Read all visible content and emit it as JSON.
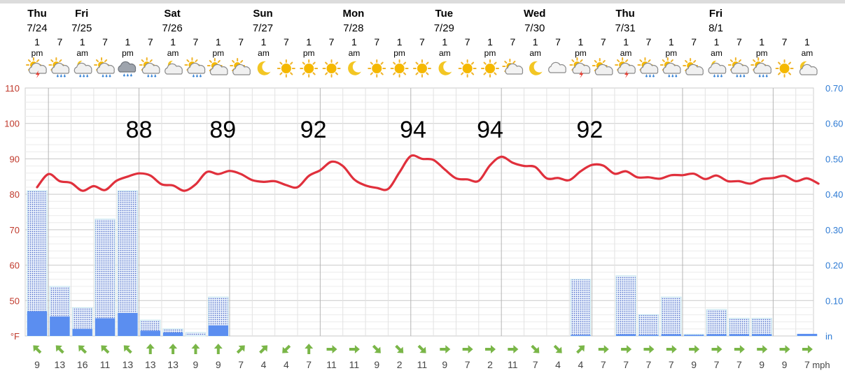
{
  "chart_data": {
    "type": "line",
    "x_times": [
      "Thu 7/24 1pm",
      "7pm",
      "Fri 7/25 1am",
      "7am",
      "1pm",
      "7pm",
      "Sat 7/26 1am",
      "7am",
      "1pm",
      "7pm",
      "Sun 7/27 1am",
      "7am",
      "1pm",
      "7pm",
      "Mon 7/28 1am",
      "7am",
      "1pm",
      "7pm",
      "Tue 7/29 1am",
      "7am",
      "1pm",
      "7pm",
      "Wed 7/30 1am",
      "7am",
      "1pm",
      "7pm",
      "Thu 7/31 1am",
      "7am",
      "1pm",
      "7pm",
      "Fri 8/1 1am",
      "7am",
      "1pm",
      "7pm",
      "1am"
    ],
    "days": [
      {
        "name": "Thu",
        "date": "7/24"
      },
      {
        "name": "Fri",
        "date": "7/25"
      },
      {
        "name": "Sat",
        "date": "7/26"
      },
      {
        "name": "Sun",
        "date": "7/27"
      },
      {
        "name": "Mon",
        "date": "7/28"
      },
      {
        "name": "Tue",
        "date": "7/29"
      },
      {
        "name": "Wed",
        "date": "7/30"
      },
      {
        "name": "Thu",
        "date": "7/31"
      },
      {
        "name": "Fri",
        "date": "8/1"
      }
    ],
    "hour_labels": [
      {
        "h": "1",
        "ap": "pm"
      },
      {
        "h": "7",
        "ap": ""
      },
      {
        "h": "1",
        "ap": "am"
      },
      {
        "h": "7",
        "ap": ""
      },
      {
        "h": "1",
        "ap": "pm"
      },
      {
        "h": "7",
        "ap": ""
      },
      {
        "h": "1",
        "ap": "am"
      },
      {
        "h": "7",
        "ap": ""
      },
      {
        "h": "1",
        "ap": "pm"
      },
      {
        "h": "7",
        "ap": ""
      },
      {
        "h": "1",
        "ap": "am"
      },
      {
        "h": "7",
        "ap": ""
      },
      {
        "h": "1",
        "ap": "pm"
      },
      {
        "h": "7",
        "ap": ""
      },
      {
        "h": "1",
        "ap": "am"
      },
      {
        "h": "7",
        "ap": ""
      },
      {
        "h": "1",
        "ap": "pm"
      },
      {
        "h": "7",
        "ap": ""
      },
      {
        "h": "1",
        "ap": "am"
      },
      {
        "h": "7",
        "ap": ""
      },
      {
        "h": "1",
        "ap": "pm"
      },
      {
        "h": "7",
        "ap": ""
      },
      {
        "h": "1",
        "ap": "am"
      },
      {
        "h": "7",
        "ap": ""
      },
      {
        "h": "1",
        "ap": "pm"
      },
      {
        "h": "7",
        "ap": ""
      },
      {
        "h": "1",
        "ap": "am"
      },
      {
        "h": "7",
        "ap": ""
      },
      {
        "h": "1",
        "ap": "pm"
      },
      {
        "h": "7",
        "ap": ""
      },
      {
        "h": "1",
        "ap": "am"
      },
      {
        "h": "7",
        "ap": ""
      },
      {
        "h": "1",
        "ap": "pm"
      },
      {
        "h": "7",
        "ap": ""
      },
      {
        "h": "1",
        "ap": "am"
      }
    ],
    "weather_icons": [
      "thunderstorm-icon",
      "partly-cloudy-rain-icon",
      "night-rain-icon",
      "partly-cloudy-rain-icon",
      "heavy-rain-icon",
      "partly-cloudy-rain-icon",
      "night-cloudy-icon",
      "partly-cloudy-rain-icon",
      "partly-cloudy-icon",
      "partly-cloudy-icon",
      "moon-icon",
      "sun-icon",
      "sun-icon",
      "sun-icon",
      "moon-icon",
      "sun-icon",
      "sun-icon",
      "sun-icon",
      "moon-icon",
      "sun-icon",
      "sun-icon",
      "sun-cloud-icon",
      "moon-icon",
      "cloud-icon",
      "thunderstorm-icon",
      "partly-cloudy-icon",
      "thunderstorm-icon",
      "partly-cloudy-rain-icon",
      "partly-cloudy-rain-icon",
      "partly-cloudy-icon",
      "night-rain-icon",
      "partly-cloudy-rain-icon",
      "partly-cloudy-rain-icon",
      "sun-icon",
      "moon-cloud-icon"
    ],
    "temperature_f": [
      [
        0,
        82
      ],
      [
        0.5,
        85.7
      ],
      [
        1,
        83.7
      ],
      [
        1.5,
        83.2
      ],
      [
        2,
        81
      ],
      [
        2.5,
        82.3
      ],
      [
        3,
        81.2
      ],
      [
        3.5,
        83.8
      ],
      [
        4,
        85
      ],
      [
        4.5,
        85.9
      ],
      [
        5,
        85.3
      ],
      [
        5.5,
        82.8
      ],
      [
        6,
        82.5
      ],
      [
        6.5,
        81
      ],
      [
        7,
        82.8
      ],
      [
        7.5,
        86.3
      ],
      [
        8,
        85.7
      ],
      [
        8.5,
        86.6
      ],
      [
        9,
        85.7
      ],
      [
        9.5,
        84
      ],
      [
        10,
        83.5
      ],
      [
        10.5,
        83.7
      ],
      [
        11,
        82.6
      ],
      [
        11.5,
        82
      ],
      [
        12,
        85.2
      ],
      [
        12.5,
        86.8
      ],
      [
        13,
        89.2
      ],
      [
        13.5,
        88
      ],
      [
        14,
        84.2
      ],
      [
        14.5,
        82.5
      ],
      [
        15,
        81.8
      ],
      [
        15.5,
        81.5
      ],
      [
        16,
        86.2
      ],
      [
        16.5,
        90.8
      ],
      [
        17,
        90
      ],
      [
        17.5,
        89.7
      ],
      [
        18,
        87
      ],
      [
        18.5,
        84.5
      ],
      [
        19,
        84.2
      ],
      [
        19.5,
        83.8
      ],
      [
        20,
        88.2
      ],
      [
        20.5,
        90.6
      ],
      [
        21,
        88.9
      ],
      [
        21.5,
        88
      ],
      [
        22,
        87.7
      ],
      [
        22.5,
        84.5
      ],
      [
        23,
        84.6
      ],
      [
        23.5,
        84
      ],
      [
        24,
        86.5
      ],
      [
        24.5,
        88.3
      ],
      [
        25,
        88.1
      ],
      [
        25.5,
        85.8
      ],
      [
        26,
        86.5
      ],
      [
        26.5,
        84.8
      ],
      [
        27,
        84.8
      ],
      [
        27.5,
        84.4
      ],
      [
        28,
        85.4
      ],
      [
        28.5,
        85.4
      ],
      [
        29,
        85.8
      ],
      [
        29.5,
        84.3
      ],
      [
        30,
        85.3
      ],
      [
        30.5,
        83.7
      ],
      [
        31,
        83.7
      ],
      [
        31.5,
        83
      ],
      [
        32,
        84.3
      ],
      [
        32.5,
        84.6
      ],
      [
        33,
        85.2
      ],
      [
        33.5,
        83.7
      ],
      [
        34,
        84.5
      ],
      [
        34.5,
        83
      ]
    ],
    "precip_potential_in": [
      0.41,
      0.14,
      0.08,
      0.33,
      0.41,
      0.045,
      0.02,
      0.01,
      0.11,
      0,
      0,
      0,
      0,
      0,
      0,
      0,
      0,
      0,
      0,
      0,
      0,
      0,
      0,
      0,
      0.16,
      0,
      0.17,
      0.06,
      0.11,
      0.005,
      0.075,
      0.05,
      0.05,
      0,
      0.005
    ],
    "precip_likely_in": [
      0.07,
      0.055,
      0.02,
      0.05,
      0.065,
      0.015,
      0.01,
      0,
      0.03,
      0,
      0,
      0,
      0,
      0,
      0,
      0,
      0,
      0,
      0,
      0,
      0,
      0,
      0,
      0,
      0.003,
      0,
      0.005,
      0.003,
      0.005,
      0.003,
      0.005,
      0.005,
      0.005,
      0,
      0.006
    ],
    "daily_high_annotations": [
      {
        "at": 4.5,
        "text": "88"
      },
      {
        "at": 8.2,
        "text": "89"
      },
      {
        "at": 12.2,
        "text": "92"
      },
      {
        "at": 16.6,
        "text": "94"
      },
      {
        "at": 20,
        "text": "94"
      },
      {
        "at": 24.4,
        "text": "92"
      }
    ],
    "wind_speed_mph": [
      9,
      13,
      16,
      11,
      13,
      13,
      13,
      9,
      9,
      7,
      4,
      4,
      7,
      11,
      11,
      9,
      2,
      11,
      9,
      7,
      2,
      11,
      7,
      4,
      4,
      7,
      7,
      7,
      7,
      9,
      7,
      7,
      9,
      9,
      7
    ],
    "wind_dir_deg": [
      315,
      315,
      315,
      315,
      315,
      0,
      0,
      0,
      0,
      45,
      45,
      225,
      0,
      90,
      90,
      135,
      135,
      135,
      90,
      90,
      90,
      90,
      135,
      135,
      45,
      90,
      90,
      90,
      90,
      90,
      90,
      90,
      90,
      90,
      90
    ],
    "y_left": {
      "min": 40,
      "max": 110,
      "ticks": [
        110,
        100,
        90,
        80,
        70,
        60,
        50
      ],
      "unit": "°F"
    },
    "y_right": {
      "min": 0,
      "max": 0.7,
      "ticks": [
        "0.70",
        "0.60",
        "0.50",
        "0.40",
        "0.30",
        "0.20",
        "0.10"
      ],
      "unit": "in"
    },
    "wind_unit": "mph",
    "colors": {
      "temperature": "#e0303c",
      "precip_dots": "#4a67c8",
      "precip_likely": "#5b8ef0",
      "left_axis": "#c0392b",
      "right_axis": "#2e7bd4",
      "wind_arrow": "#7ab648"
    }
  }
}
